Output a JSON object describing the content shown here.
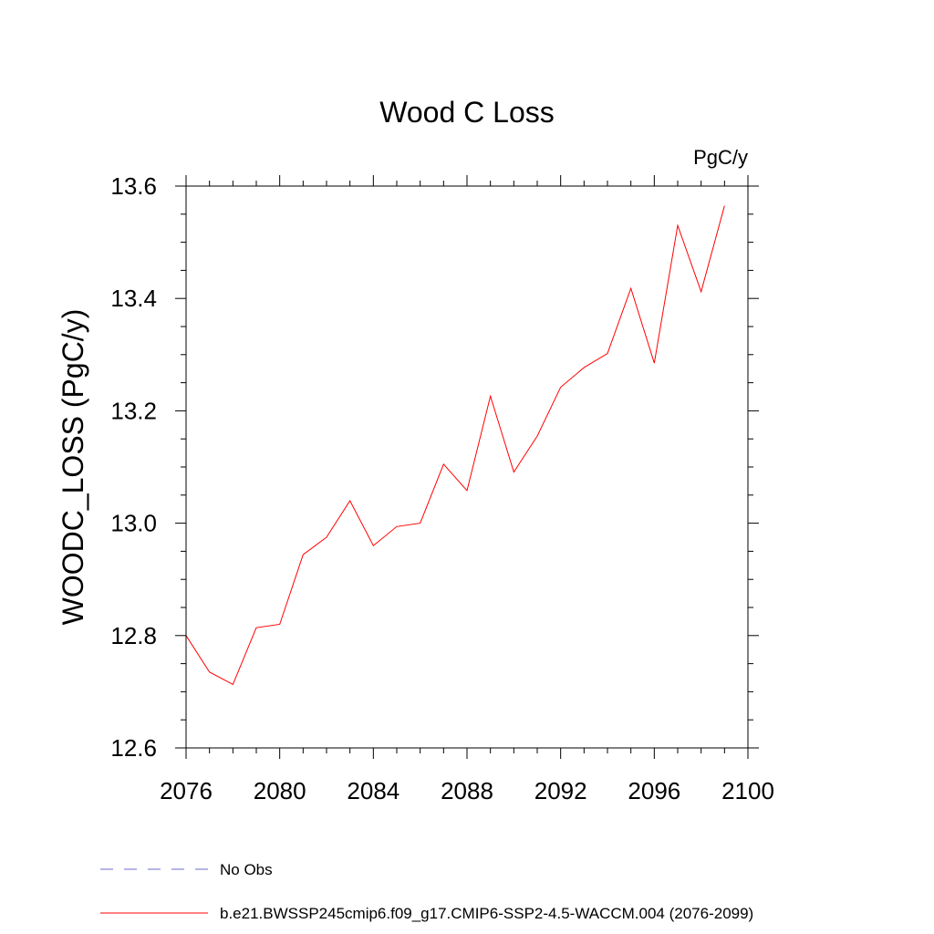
{
  "chart_data": {
    "type": "line",
    "title": "Wood C Loss",
    "units": "PgC/y",
    "xlabel": "",
    "ylabel": "WOODC_LOSS  (PgC/y)",
    "xlim": [
      2076,
      2100
    ],
    "ylim": [
      12.6,
      13.6
    ],
    "x_ticks": [
      2076,
      2080,
      2084,
      2088,
      2092,
      2096,
      2100
    ],
    "x_tick_labels": [
      "2076",
      "2080",
      "2084",
      "2088",
      "2092",
      "2096",
      "2100"
    ],
    "y_ticks": [
      12.6,
      12.8,
      13.0,
      13.2,
      13.4,
      13.6
    ],
    "y_tick_labels": [
      "12.6",
      "12.8",
      "13.0",
      "13.2",
      "13.4",
      "13.6"
    ],
    "grid": false,
    "legend_position": "bottom-left",
    "x": [
      2076,
      2077,
      2078,
      2079,
      2080,
      2081,
      2082,
      2083,
      2084,
      2085,
      2086,
      2087,
      2088,
      2089,
      2090,
      2091,
      2092,
      2093,
      2094,
      2095,
      2096,
      2097,
      2098,
      2099
    ],
    "series": [
      {
        "name": "b.e21.BWSSP245cmip6.f09_g17.CMIP6-SSP2-4.5-WACCM.004 (2076-2099)",
        "color": "#ff0000",
        "style": "solid",
        "values": [
          12.8,
          12.735,
          12.713,
          12.814,
          12.82,
          12.944,
          12.975,
          13.04,
          12.96,
          12.994,
          13.0,
          13.105,
          13.058,
          13.226,
          13.091,
          13.155,
          13.242,
          13.277,
          13.302,
          13.418,
          13.285,
          13.53,
          13.412,
          13.565
        ]
      }
    ],
    "legend": [
      {
        "label": "No Obs",
        "color": "#6b6bd6",
        "style": "dashed"
      },
      {
        "label": "b.e21.BWSSP245cmip6.f09_g17.CMIP6-SSP2-4.5-WACCM.004 (2076-2099)",
        "color": "#ff0000",
        "style": "solid"
      }
    ]
  }
}
